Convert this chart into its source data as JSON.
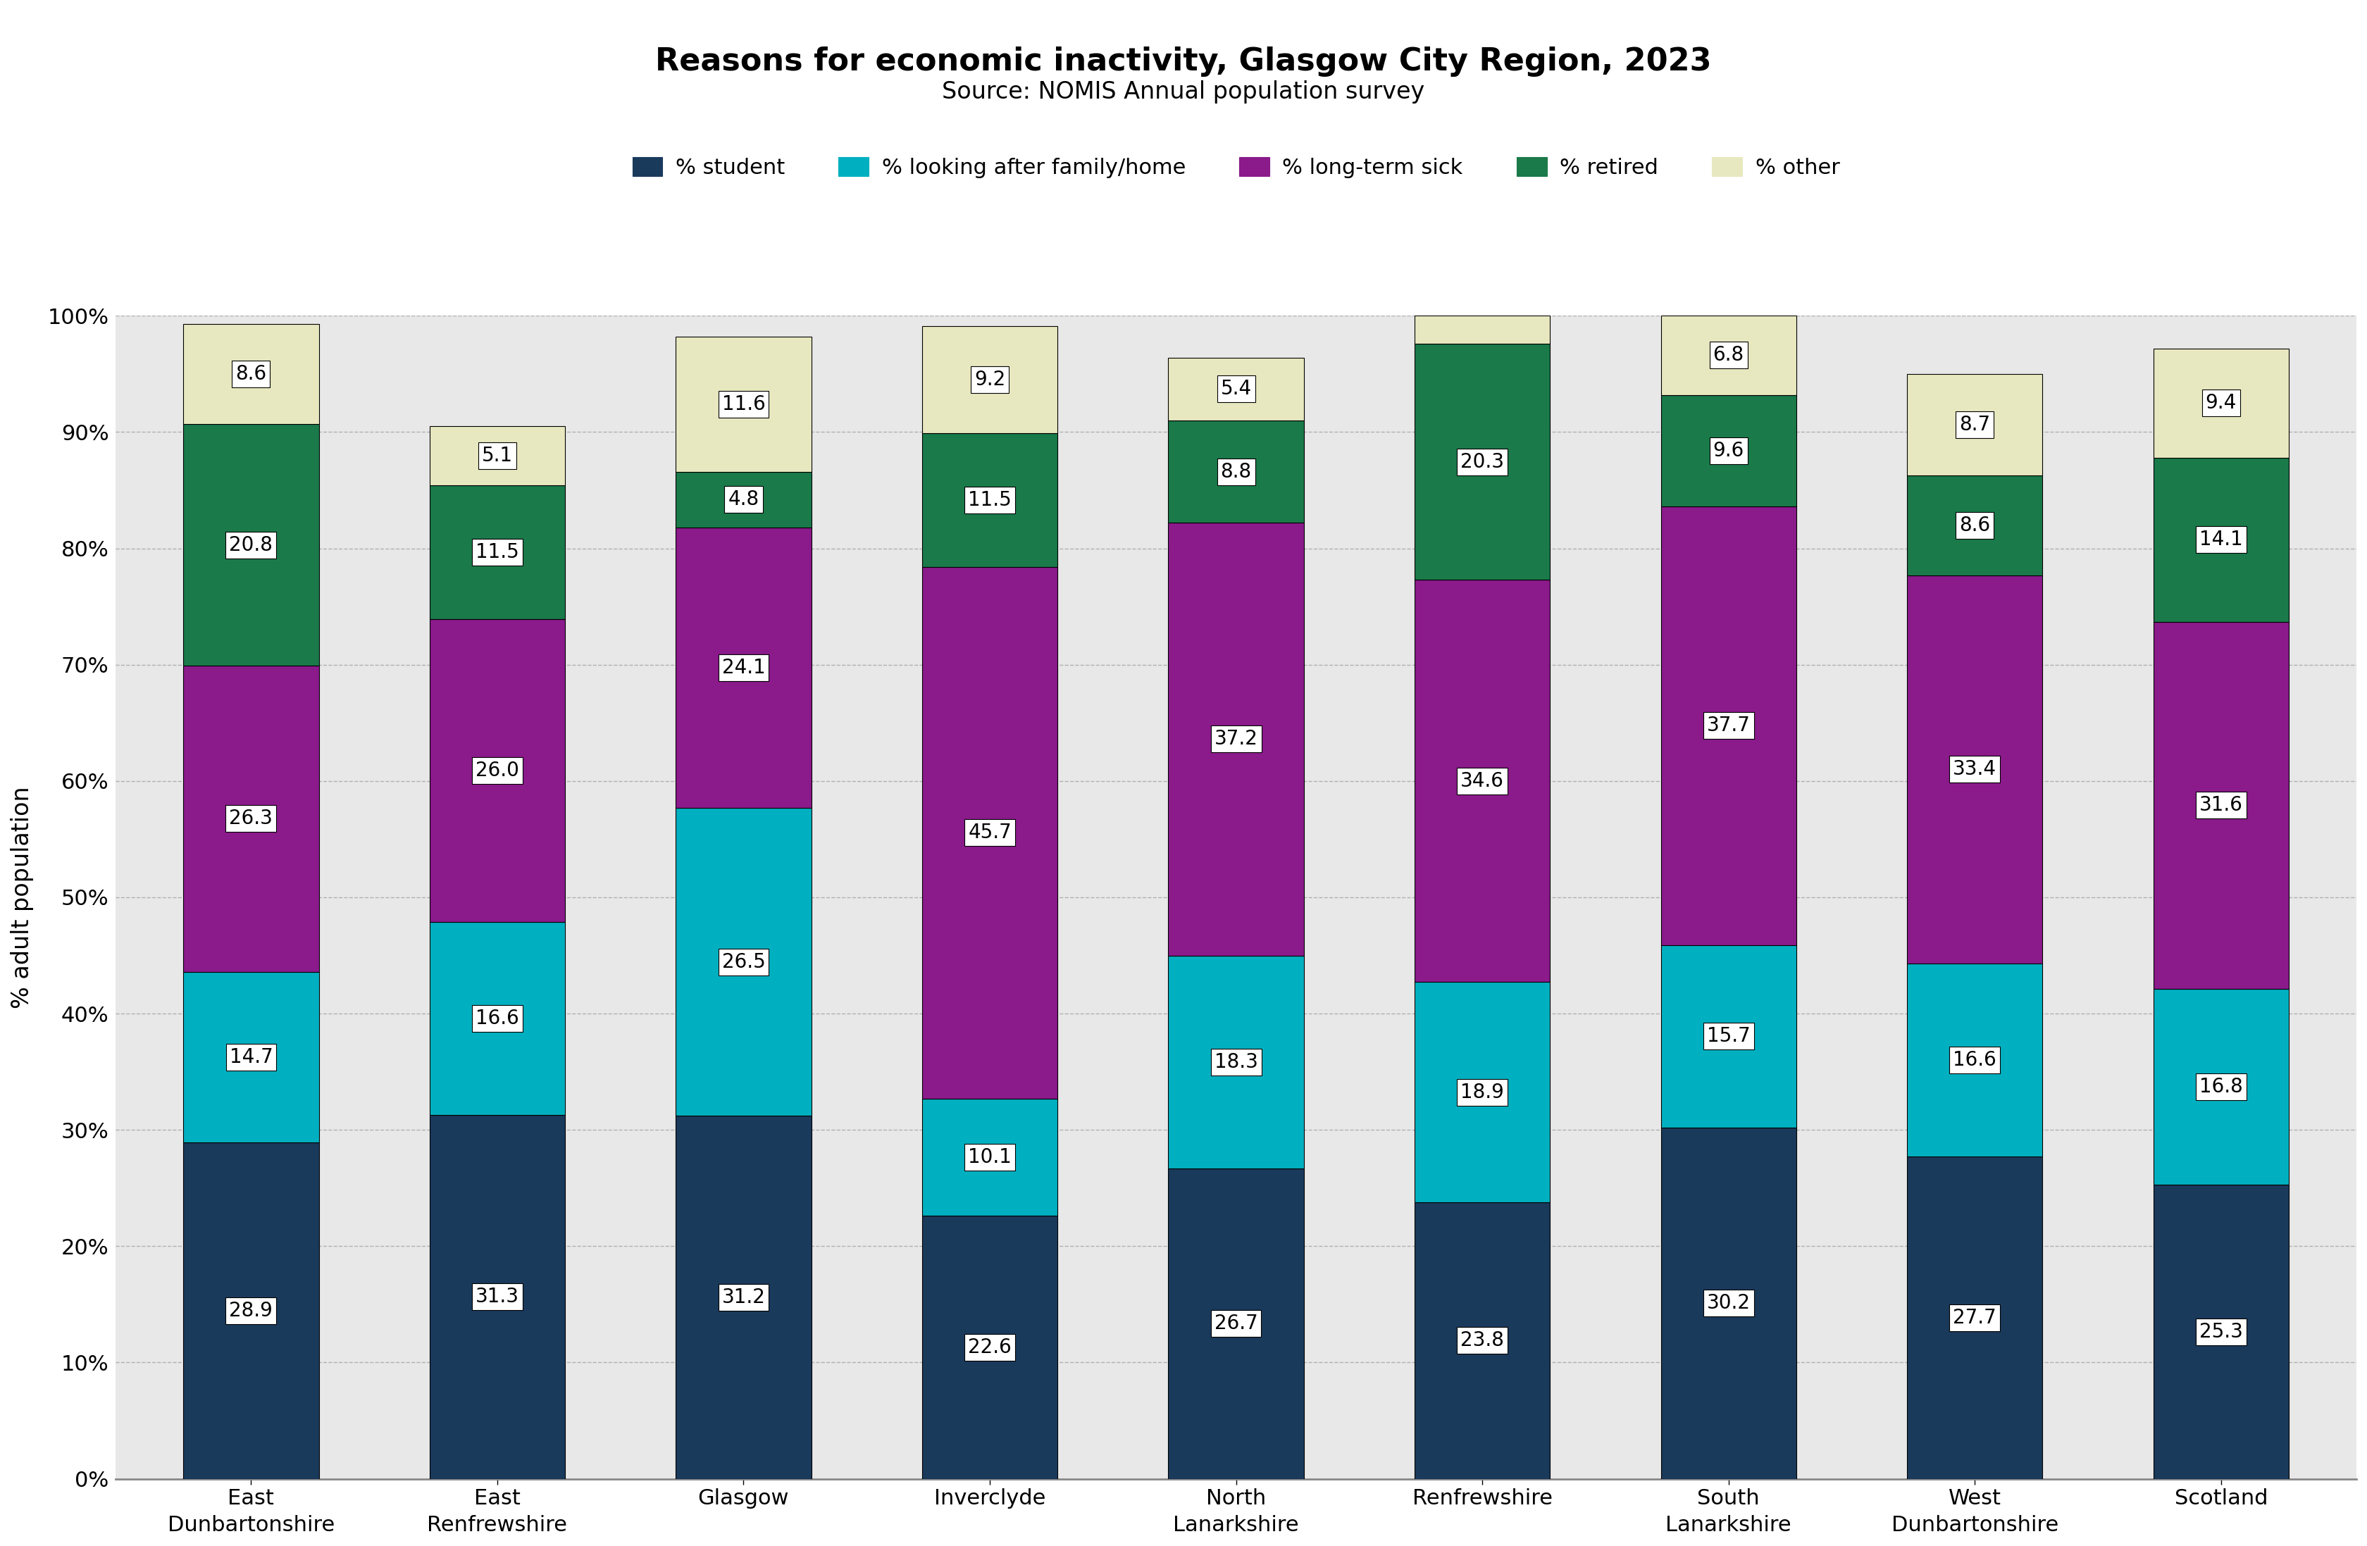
{
  "title": "Reasons for economic inactivity, Glasgow City Region, 2023",
  "subtitle": "Source: NOMIS Annual population survey",
  "categories": [
    "East\nDunbartonshire",
    "East\nRenfrewshire",
    "Glasgow",
    "Inverclyde",
    "North\nLanarkshire",
    "Renfrewshire",
    "South\nLanarkshire",
    "West\nDunbartonshire",
    "Scotland"
  ],
  "legend_labels": [
    "% student",
    "% looking after family/home",
    "% long-term sick",
    "% retired",
    "% other"
  ],
  "colors": [
    "#1a3a5c",
    "#00b0c0",
    "#8b1a8b",
    "#1a7a4a",
    "#e8e8c0"
  ],
  "data": {
    "student": [
      28.9,
      31.3,
      31.2,
      22.6,
      26.7,
      23.8,
      30.2,
      27.7,
      25.3
    ],
    "family_home": [
      14.7,
      16.6,
      26.5,
      10.1,
      18.3,
      18.9,
      15.7,
      16.6,
      16.8
    ],
    "long_term_sick": [
      26.3,
      26.0,
      24.1,
      45.7,
      37.2,
      34.6,
      37.7,
      33.4,
      31.6
    ],
    "retired": [
      20.8,
      11.5,
      4.8,
      11.5,
      8.8,
      20.3,
      9.6,
      8.6,
      14.1
    ],
    "other": [
      8.6,
      5.1,
      11.6,
      9.2,
      5.4,
      2.4,
      6.8,
      8.7,
      9.4
    ]
  },
  "ylabel": "% adult population",
  "ylim": [
    0,
    100
  ],
  "yticks": [
    0,
    10,
    20,
    30,
    40,
    50,
    60,
    70,
    80,
    90,
    100
  ],
  "ytick_labels": [
    "0%",
    "10%",
    "20%",
    "30%",
    "40%",
    "50%",
    "60%",
    "70%",
    "80%",
    "90%",
    "100%"
  ],
  "background_color": "#ffffff",
  "plot_background": "#e8e8e8",
  "bar_width": 0.55,
  "title_fontsize": 32,
  "subtitle_fontsize": 24,
  "legend_fontsize": 22,
  "tick_fontsize": 22,
  "ylabel_fontsize": 24,
  "value_fontsize": 20
}
